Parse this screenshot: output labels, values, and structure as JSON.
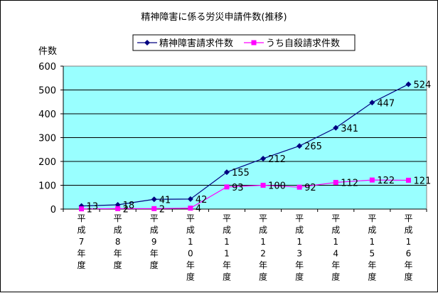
{
  "chart_data": {
    "type": "line",
    "title": "精神障害に係る労災申請件数(推移)",
    "ylabel": "件数",
    "ylim": [
      0,
      600
    ],
    "yticks": [
      0,
      100,
      200,
      300,
      400,
      500,
      600
    ],
    "grid": true,
    "legend_position": "top",
    "categories": [
      "平成7年度",
      "平成8年度",
      "平成9年度",
      "平成10年度",
      "平成11年度",
      "平成12年度",
      "平成13年度",
      "平成14年度",
      "平成15年度",
      "平成16年度"
    ],
    "series": [
      {
        "name": "精神障害請求件数",
        "color": "#000080",
        "marker": "diamond",
        "values": [
          13,
          18,
          41,
          42,
          155,
          212,
          265,
          341,
          447,
          524
        ]
      },
      {
        "name": "うち自殺請求件数",
        "color": "#ff00ff",
        "marker": "square",
        "values": [
          1,
          2,
          2,
          4,
          93,
          100,
          92,
          112,
          122,
          121
        ]
      }
    ],
    "plot_background": "#99ffff"
  }
}
